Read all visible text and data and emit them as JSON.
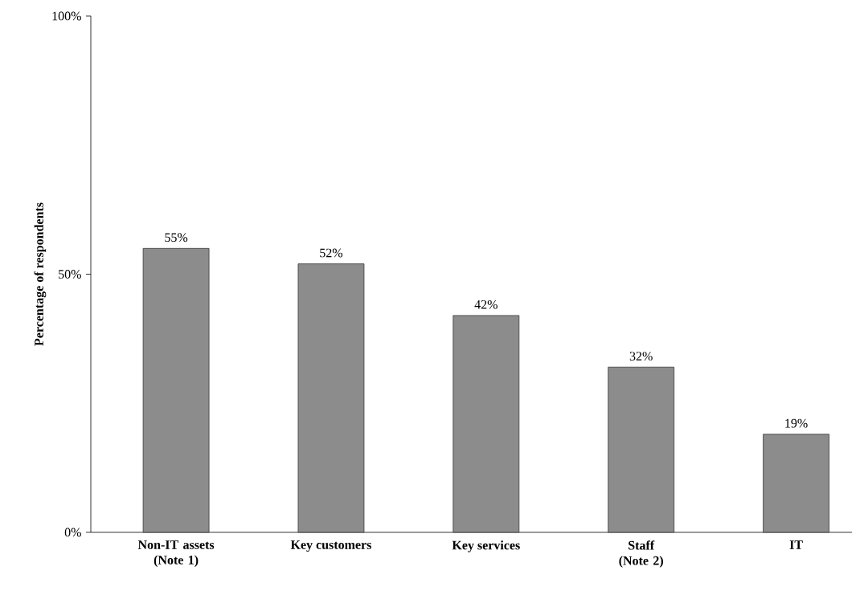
{
  "chart_data": {
    "type": "bar",
    "categories": [
      "Non-IT assets (Note 1)",
      "Key customers",
      "Key services",
      "Staff (Note 2)",
      "IT"
    ],
    "values": [
      55,
      52,
      42,
      32,
      19
    ],
    "value_labels": [
      "55%",
      "52%",
      "42%",
      "32%",
      "19%"
    ],
    "color": "#8c8c8c",
    "ylabel": "Percentage of respondents",
    "ylim": [
      0,
      100
    ],
    "yticks": [
      {
        "value": 0,
        "label": "0%"
      },
      {
        "value": 50,
        "label": "50%"
      },
      {
        "value": 100,
        "label": "100%"
      }
    ],
    "grid": false
  }
}
